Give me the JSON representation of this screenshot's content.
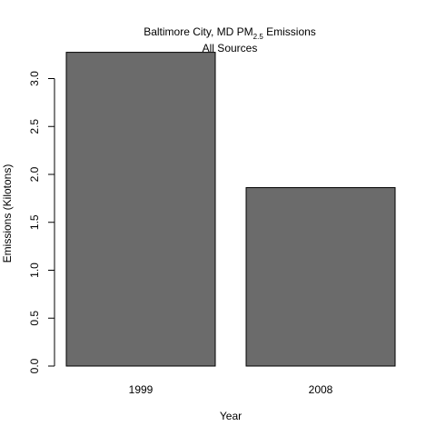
{
  "chart_data": {
    "type": "bar",
    "title": "Baltimore City, MD PM",
    "title_subscript": "2.5",
    "title_suffix": " Emissions",
    "subtitle": "All Sources",
    "xlabel": "Year",
    "ylabel": "Emissions (Kilotons)",
    "categories": [
      "1999",
      "2008"
    ],
    "values": [
      3.274,
      1.862
    ],
    "ylim": [
      0,
      3.27
    ],
    "yticks": [
      "0.0",
      "0.5",
      "1.0",
      "1.5",
      "2.0",
      "2.5",
      "3.0"
    ],
    "bar_color": "#6b6b6b",
    "bar_border_color": "#000000",
    "grid": false,
    "legend": "none"
  }
}
